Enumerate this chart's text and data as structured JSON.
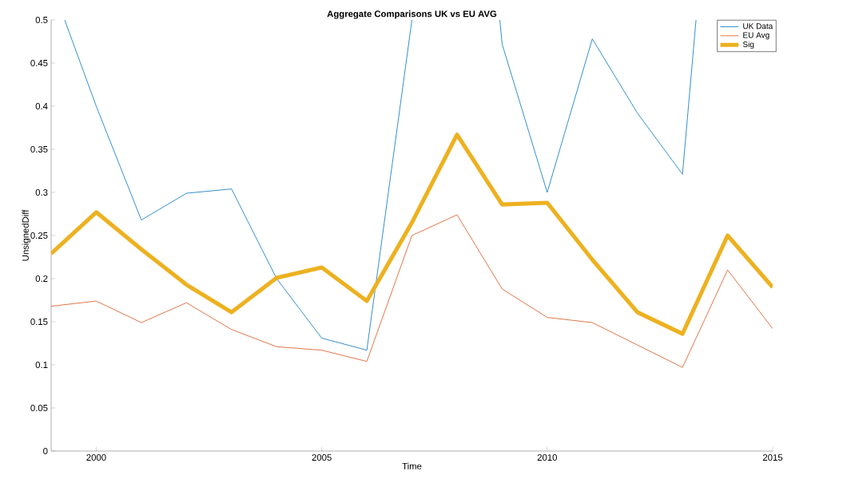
{
  "chart_data": {
    "type": "line",
    "title": "Aggregate Comparisons UK vs EU AVG",
    "xlabel": "Time",
    "ylabel": "UnsignedDiff",
    "x": [
      1999,
      2000,
      2001,
      2002,
      2003,
      2004,
      2005,
      2006,
      2007,
      2008,
      2009,
      2010,
      2011,
      2012,
      2013,
      2014,
      2015
    ],
    "series": [
      {
        "name": "UK Data",
        "color": "#0072bd",
        "x": [
          1999.3,
          2000,
          2001,
          2002,
          2003,
          2004,
          2005,
          2006,
          2007,
          2007.5,
          2008.95,
          2009,
          2010,
          2011,
          2012,
          2013,
          2013.3
        ],
        "values": [
          0.5,
          0.4,
          0.268,
          0.299,
          0.304,
          0.2,
          0.131,
          0.117,
          0.5,
          null,
          0.5,
          0.472,
          0.3,
          0.478,
          0.392,
          0.321,
          0.5
        ]
      },
      {
        "name": "EU Avg",
        "color": "#d95319",
        "values": [
          0.168,
          0.174,
          0.149,
          0.172,
          0.141,
          0.121,
          0.117,
          0.104,
          0.25,
          0.274,
          0.188,
          0.155,
          0.149,
          0.123,
          0.097,
          0.21,
          0.142
        ]
      },
      {
        "name": "Sig",
        "color": "#edb120",
        "values": [
          0.229,
          0.277,
          0.234,
          0.193,
          0.161,
          0.201,
          0.213,
          0.174,
          0.265,
          0.367,
          0.286,
          0.288,
          0.222,
          0.161,
          0.136,
          0.25,
          0.19
        ]
      }
    ],
    "xlim": [
      1999,
      2015
    ],
    "xticks": [
      2000,
      2005,
      2010,
      2015
    ],
    "ylim": [
      0,
      0.5
    ],
    "yticks": [
      0,
      0.05,
      0.1,
      0.15,
      0.2,
      0.25,
      0.3,
      0.35,
      0.4,
      0.45,
      0.5
    ],
    "legend": "top right",
    "grid": false,
    "marker": "none",
    "line_style": "solid"
  }
}
